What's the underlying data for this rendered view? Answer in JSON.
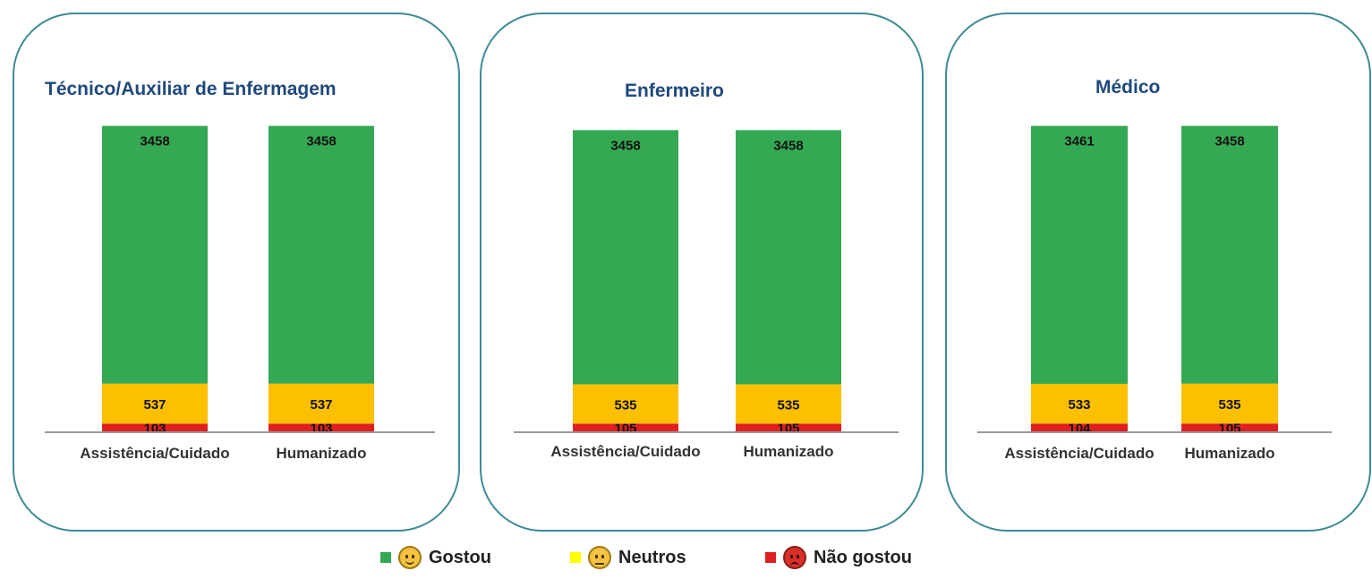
{
  "legend": [
    {
      "label": "Gostou",
      "color": "#35a853",
      "face_color": "#f5c242",
      "icon": "smiling-face-icon"
    },
    {
      "label": "Neutros",
      "color": "#ffff00",
      "face_color": "#f5c242",
      "icon": "neutral-face-icon"
    },
    {
      "label": "Não gostou",
      "color": "#e02020",
      "face_color": "#d9302a",
      "icon": "angry-face-icon"
    }
  ],
  "chart_data": [
    {
      "type": "bar",
      "stacked": true,
      "title": "Técnico/Auxiliar de Enfermagem",
      "categories": [
        "Assistência/Cuidado",
        "Humanizado"
      ],
      "series": [
        {
          "name": "Não gostou",
          "color": "#e02020",
          "values": [
            103,
            103
          ]
        },
        {
          "name": "Neutros",
          "color": "#fcc000",
          "values": [
            537,
            537
          ]
        },
        {
          "name": "Gostou",
          "color": "#35a853",
          "values": [
            3458,
            3458
          ]
        }
      ]
    },
    {
      "type": "bar",
      "stacked": true,
      "title": "Enfermeiro",
      "categories": [
        "Assistência/Cuidado",
        "Humanizado"
      ],
      "series": [
        {
          "name": "Não gostou",
          "color": "#e02020",
          "values": [
            105,
            105
          ]
        },
        {
          "name": "Neutros",
          "color": "#fcc000",
          "values": [
            535,
            535
          ]
        },
        {
          "name": "Gostou",
          "color": "#35a853",
          "values": [
            3458,
            3458
          ]
        }
      ]
    },
    {
      "type": "bar",
      "stacked": true,
      "title": "Médico",
      "categories": [
        "Assistência/Cuidado",
        "Humanizado"
      ],
      "series": [
        {
          "name": "Não gostou",
          "color": "#e02020",
          "values": [
            104,
            105
          ]
        },
        {
          "name": "Neutros",
          "color": "#fcc000",
          "values": [
            533,
            535
          ]
        },
        {
          "name": "Gostou",
          "color": "#35a853",
          "values": [
            3461,
            3458
          ]
        }
      ]
    }
  ]
}
